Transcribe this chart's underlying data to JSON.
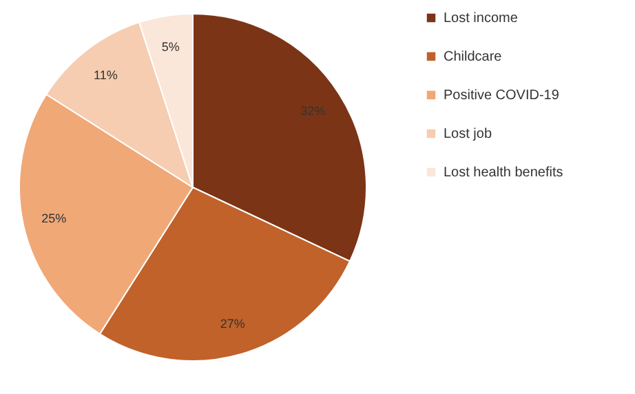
{
  "chart_data": {
    "type": "pie",
    "categories": [
      "Lost income",
      "Childcare",
      "Positive COVID-19",
      "Lost job",
      "Lost health benefits"
    ],
    "values": [
      32,
      27,
      25,
      11,
      5
    ],
    "value_labels": [
      "32%",
      "27%",
      "25%",
      "11%",
      "5%"
    ],
    "colors": [
      "#7b3416",
      "#c0622a",
      "#f0a877",
      "#f6cdb0",
      "#fbe6da"
    ],
    "legend": "right"
  }
}
